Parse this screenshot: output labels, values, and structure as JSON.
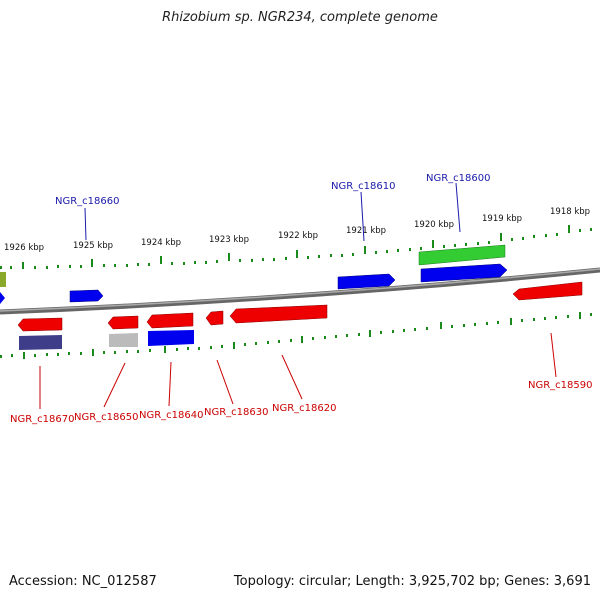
{
  "title": "Rhizobium sp. NGR234, complete genome",
  "footer": {
    "accession": "Accession: NC_012587",
    "topology": "Topology: circular; Length: 3,925,702 bp; Genes: 3,691"
  },
  "colors": {
    "forward_gene": "#0000ee",
    "reverse_gene": "#ee0000",
    "rna_gene": "#33cc33",
    "pseudo_gene": "#3d3d8a",
    "other_gene": "#bbbbbb",
    "tick": "#1a8a1a",
    "backbone": "#777777"
  },
  "ruler_labels": [
    "1926 kbp",
    "1925 kbp",
    "1924 kbp",
    "1923 kbp",
    "1922 kbp",
    "1921 kbp",
    "1920 kbp",
    "1919 kbp",
    "1918 kbp"
  ],
  "gene_labels_top": [
    "NGR_c18660",
    "NGR_c18610",
    "NGR_c18600"
  ],
  "gene_labels_bottom": [
    "NGR_c18670",
    "NGR_c18650",
    "NGR_c18640",
    "NGR_c18630",
    "NGR_c18620",
    "NGR_c18590"
  ]
}
